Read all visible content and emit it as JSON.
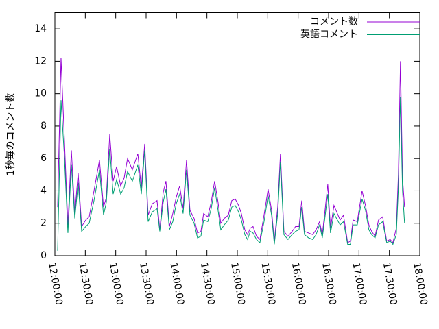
{
  "chart_data": {
    "type": "line",
    "y_label": "1秒毎のコメント数",
    "x": [
      12.045,
      12.101,
      12.158,
      12.214,
      12.271,
      12.327,
      12.383,
      12.44,
      12.507,
      12.564,
      12.643,
      12.733,
      12.8,
      12.846,
      12.902,
      12.958,
      13.015,
      13.082,
      13.139,
      13.195,
      13.274,
      13.364,
      13.421,
      13.477,
      13.533,
      13.601,
      13.68,
      13.725,
      13.781,
      13.826,
      13.883,
      13.939,
      13.995,
      14.052,
      14.108,
      14.165,
      14.221,
      14.289,
      14.345,
      14.401,
      14.446,
      14.514,
      14.57,
      14.627,
      14.683,
      14.728,
      14.785,
      14.852,
      14.909,
      14.965,
      15.021,
      15.066,
      15.123,
      15.168,
      15.213,
      15.258,
      15.315,
      15.371,
      15.439,
      15.506,
      15.563,
      15.608,
      15.664,
      15.709,
      15.766,
      15.833,
      15.901,
      15.957,
      16.014,
      16.059,
      16.104,
      16.172,
      16.239,
      16.295,
      16.352,
      16.397,
      16.442,
      16.487,
      16.532,
      16.589,
      16.645,
      16.69,
      16.746,
      16.814,
      16.859,
      16.904,
      16.972,
      17.051,
      17.107,
      17.163,
      17.208,
      17.265,
      17.321,
      17.389,
      17.456,
      17.513,
      17.558,
      17.614,
      17.648,
      17.682,
      17.716,
      17.75
    ],
    "series": [
      {
        "name": "コメント数",
        "color": "#9400d3",
        "values": [
          3.0,
          12.2,
          7.0,
          1.9,
          6.5,
          2.6,
          5.1,
          1.8,
          2.2,
          2.4,
          4.0,
          5.9,
          3.0,
          3.6,
          7.5,
          4.6,
          5.5,
          4.3,
          4.8,
          6.0,
          5.3,
          6.3,
          4.2,
          6.9,
          2.5,
          3.2,
          3.4,
          1.6,
          3.9,
          4.6,
          1.8,
          2.6,
          3.6,
          4.3,
          2.9,
          5.9,
          2.8,
          2.3,
          1.4,
          1.5,
          2.6,
          2.4,
          3.3,
          4.6,
          3.3,
          2.0,
          2.3,
          2.5,
          3.4,
          3.5,
          3.1,
          2.6,
          1.6,
          1.3,
          1.7,
          1.8,
          1.2,
          1.0,
          2.5,
          4.1,
          2.8,
          0.9,
          3.0,
          6.3,
          1.5,
          1.2,
          1.5,
          1.8,
          1.8,
          3.4,
          1.5,
          1.4,
          1.3,
          1.6,
          2.1,
          1.3,
          2.8,
          4.4,
          1.7,
          3.1,
          2.6,
          2.2,
          2.5,
          0.8,
          0.9,
          2.2,
          2.1,
          4.0,
          3.1,
          1.9,
          1.5,
          1.2,
          2.2,
          2.4,
          0.9,
          1.0,
          0.8,
          1.7,
          5.0,
          12.0,
          4.8,
          3.0
        ]
      },
      {
        "name": "英語コメント",
        "color": "#009e73",
        "values": [
          0.3,
          9.6,
          6.0,
          1.4,
          5.6,
          2.3,
          4.5,
          1.5,
          1.8,
          2.0,
          3.4,
          5.3,
          2.5,
          3.3,
          6.6,
          3.8,
          4.7,
          3.8,
          4.2,
          5.2,
          4.6,
          5.6,
          3.8,
          6.5,
          2.1,
          2.7,
          2.9,
          1.5,
          3.3,
          4.1,
          1.6,
          2.1,
          3.2,
          3.8,
          2.6,
          5.3,
          2.5,
          2.0,
          1.1,
          1.2,
          2.2,
          2.1,
          2.9,
          4.2,
          2.8,
          1.6,
          1.9,
          2.2,
          3.0,
          3.1,
          2.7,
          2.2,
          1.3,
          1.0,
          1.5,
          1.4,
          1.0,
          0.8,
          2.1,
          3.7,
          2.5,
          0.7,
          2.6,
          5.8,
          1.3,
          1.0,
          1.3,
          1.5,
          1.6,
          3.0,
          1.3,
          1.1,
          1.0,
          1.3,
          1.9,
          1.1,
          2.4,
          3.8,
          1.4,
          2.6,
          2.2,
          1.9,
          2.1,
          0.7,
          0.7,
          1.9,
          1.9,
          3.5,
          2.8,
          1.6,
          1.3,
          1.1,
          1.9,
          2.1,
          0.8,
          0.9,
          0.7,
          1.3,
          4.2,
          9.8,
          4.0,
          2.0
        ]
      }
    ],
    "xlim": [
      12,
      18
    ],
    "xticks": [
      {
        "value": 12,
        "label": "12:00:00"
      },
      {
        "value": 12.5,
        "label": "12:30:00"
      },
      {
        "value": 13,
        "label": "13:00:00"
      },
      {
        "value": 13.5,
        "label": "13:30:00"
      },
      {
        "value": 14,
        "label": "14:00:00"
      },
      {
        "value": 14.5,
        "label": "14:30:00"
      },
      {
        "value": 15,
        "label": "15:00:00"
      },
      {
        "value": 15.5,
        "label": "15:30:00"
      },
      {
        "value": 16,
        "label": "16:00:00"
      },
      {
        "value": 16.5,
        "label": "16:30:00"
      },
      {
        "value": 17,
        "label": "17:00:00"
      },
      {
        "value": 17.5,
        "label": "17:30:00"
      },
      {
        "value": 18,
        "label": "18:00:00"
      }
    ],
    "ylim": [
      0,
      15
    ],
    "yticks": [
      0,
      2,
      4,
      6,
      8,
      10,
      12,
      14
    ],
    "legend": "top-right",
    "grid": false
  }
}
